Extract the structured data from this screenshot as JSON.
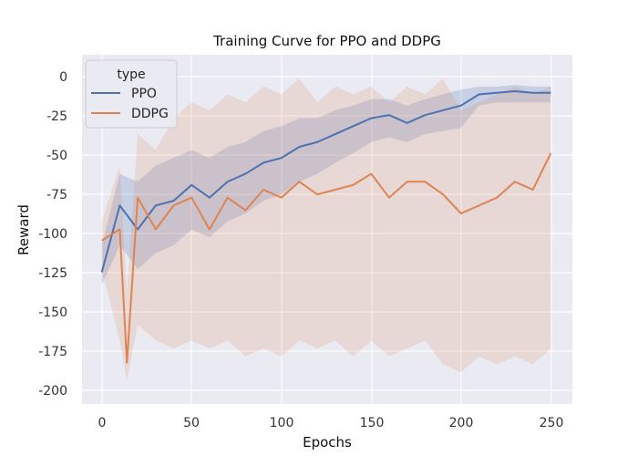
{
  "chart_data": {
    "type": "line",
    "title": "Training Curve for PPO and DDPG",
    "xlabel": "Epochs",
    "ylabel": "Reward",
    "xlim": [
      -11,
      262
    ],
    "ylim": [
      -210,
      10
    ],
    "xticks": [
      0,
      50,
      100,
      150,
      200,
      250
    ],
    "yticks": [
      0,
      -25,
      -50,
      -75,
      -100,
      -125,
      -150,
      -175,
      -200
    ],
    "grid": true,
    "legend": {
      "title": "type",
      "placement": "top-left"
    },
    "colors": {
      "background": "#eaeaf2",
      "grid": "#ffffff"
    },
    "series": [
      {
        "name": "PPO",
        "color": "#4c72b0",
        "x": [
          0,
          10,
          20,
          30,
          40,
          50,
          60,
          70,
          80,
          90,
          100,
          110,
          120,
          130,
          140,
          150,
          160,
          170,
          180,
          190,
          200,
          210,
          220,
          230,
          240,
          250
        ],
        "values": [
          -127,
          -85,
          -100,
          -85,
          -82,
          -72,
          -80,
          -70,
          -65,
          -58,
          -55,
          -48,
          -45,
          -40,
          -35,
          -30,
          -28,
          -33,
          -28,
          -25,
          -22,
          -15,
          -14,
          -13,
          -14,
          -14
        ],
        "band_lower": [
          -135,
          -110,
          -125,
          -115,
          -110,
          -100,
          -105,
          -95,
          -90,
          -82,
          -78,
          -70,
          -65,
          -58,
          -52,
          -45,
          -42,
          -45,
          -40,
          -38,
          -36,
          -22,
          -20,
          -20,
          -20,
          -20
        ],
        "band_upper": [
          -110,
          -65,
          -70,
          -60,
          -55,
          -50,
          -55,
          -48,
          -45,
          -38,
          -35,
          -30,
          -30,
          -25,
          -22,
          -18,
          -18,
          -22,
          -18,
          -15,
          -12,
          -10,
          -10,
          -9,
          -10,
          -10
        ]
      },
      {
        "name": "DDPG",
        "color": "#dd8452",
        "x": [
          0,
          10,
          14,
          20,
          30,
          40,
          50,
          60,
          70,
          80,
          90,
          100,
          110,
          120,
          130,
          140,
          150,
          160,
          170,
          180,
          190,
          200,
          210,
          220,
          230,
          240,
          250
        ],
        "values": [
          -107,
          -100,
          -184,
          -80,
          -100,
          -85,
          -80,
          -100,
          -80,
          -88,
          -75,
          -80,
          -70,
          -78,
          -75,
          -72,
          -65,
          -80,
          -70,
          -70,
          -78,
          -90,
          -85,
          -80,
          -70,
          -75,
          -52
        ],
        "band_lower": [
          -125,
          -170,
          -195,
          -160,
          -170,
          -175,
          -170,
          -175,
          -170,
          -180,
          -175,
          -180,
          -170,
          -175,
          -170,
          -180,
          -170,
          -180,
          -175,
          -170,
          -185,
          -190,
          -180,
          -185,
          -180,
          -185,
          -175
        ],
        "band_upper": [
          -95,
          -60,
          -140,
          -40,
          -50,
          -30,
          -20,
          -25,
          -15,
          -20,
          -10,
          -15,
          -5,
          -20,
          -10,
          -15,
          -10,
          -20,
          -10,
          -15,
          -5,
          -25,
          -20,
          -15,
          -10,
          -15,
          -10
        ]
      }
    ]
  }
}
